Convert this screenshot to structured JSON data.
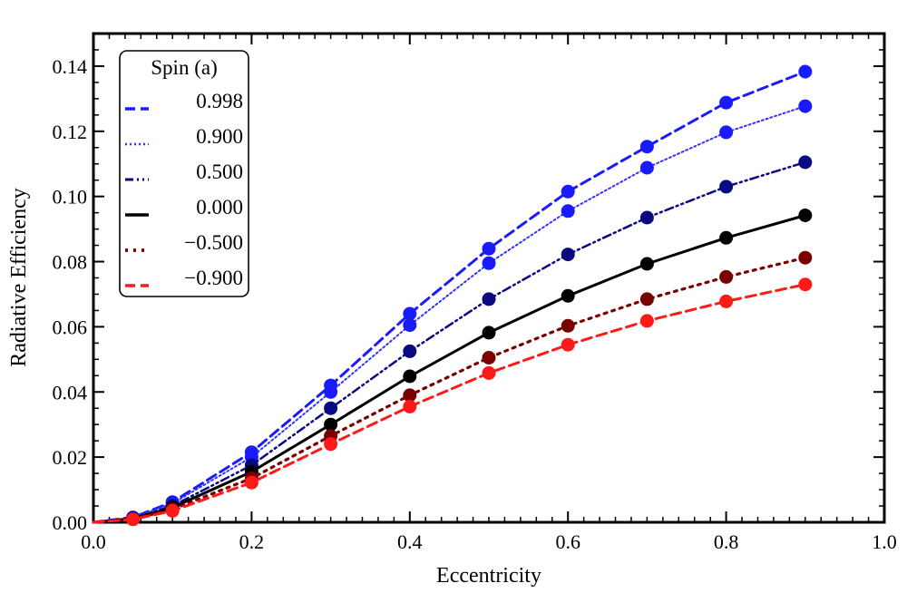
{
  "chart_data": {
    "type": "line",
    "title": "",
    "xlabel": "Eccentricity",
    "ylabel": "Radiative Efficiency",
    "xlim": [
      0.0,
      1.0
    ],
    "ylim": [
      0.0,
      0.15
    ],
    "xticks": [
      0.0,
      0.2,
      0.4,
      0.6,
      0.8,
      1.0
    ],
    "xtick_labels": [
      "0.0",
      "0.2",
      "0.4",
      "0.6",
      "0.8",
      "1.0"
    ],
    "yticks": [
      0.0,
      0.02,
      0.04,
      0.06,
      0.08,
      0.1,
      0.12,
      0.14
    ],
    "ytick_labels": [
      "0.00",
      "0.02",
      "0.04",
      "0.06",
      "0.08",
      "0.10",
      "0.12",
      "0.14"
    ],
    "grid": false,
    "legend_title": "Spin (a)",
    "legend_position": "top-left",
    "x": [
      0.0,
      0.05,
      0.1,
      0.2,
      0.3,
      0.4,
      0.5,
      0.6,
      0.7,
      0.8,
      0.9
    ],
    "series": [
      {
        "name": "0.998",
        "color": "#1a1aff",
        "marker_color": "#1a1aff",
        "dash": "dashed",
        "values": [
          0.0,
          0.0015,
          0.0062,
          0.0215,
          0.042,
          0.064,
          0.084,
          0.1015,
          0.1153,
          0.1288,
          0.1383
        ]
      },
      {
        "name": "0.900",
        "color": "#3333ff",
        "marker_color": "#1a1aff",
        "dash": "dotted",
        "values": [
          0.0,
          0.0014,
          0.0058,
          0.02,
          0.04,
          0.0605,
          0.0795,
          0.0955,
          0.1088,
          0.1197,
          0.1277
        ]
      },
      {
        "name": "0.500",
        "color": "#0a0a80",
        "marker_color": "#0a0a80",
        "dash": "dashdotdot",
        "values": [
          0.0,
          0.0012,
          0.005,
          0.0175,
          0.035,
          0.0525,
          0.0685,
          0.0822,
          0.0935,
          0.103,
          0.1105
        ]
      },
      {
        "name": "0.000",
        "color": "#000000",
        "marker_color": "#000000",
        "dash": "solid",
        "values": [
          0.0,
          0.0011,
          0.0045,
          0.0155,
          0.03,
          0.0448,
          0.0582,
          0.0695,
          0.0793,
          0.0873,
          0.0942
        ]
      },
      {
        "name": "−0.500",
        "color": "#7a0000",
        "marker_color": "#7a0000",
        "dash": "dotted",
        "values": [
          0.0,
          0.001,
          0.004,
          0.0135,
          0.0265,
          0.039,
          0.0505,
          0.0603,
          0.0685,
          0.0753,
          0.0812
        ]
      },
      {
        "name": "−0.900",
        "color": "#ff1a1a",
        "marker_color": "#ff1a1a",
        "dash": "dashed",
        "values": [
          0.0,
          0.0009,
          0.0035,
          0.0122,
          0.024,
          0.0355,
          0.0458,
          0.0545,
          0.0618,
          0.0678,
          0.073
        ]
      }
    ]
  }
}
